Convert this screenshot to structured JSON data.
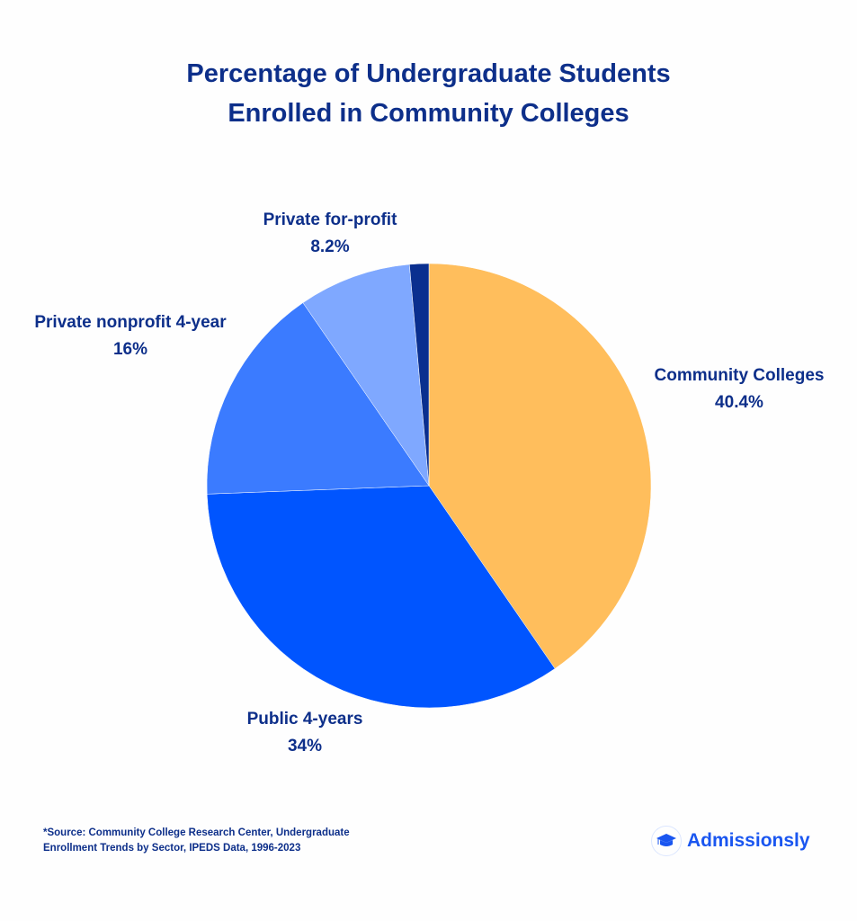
{
  "chart_data": {
    "type": "pie",
    "title": "Percentage of Undergraduate Students Enrolled in Community Colleges",
    "title_lines": [
      "Percentage of Undergraduate Students",
      "Enrolled in Community Colleges"
    ],
    "start": "top",
    "direction": "clockwise",
    "slices": [
      {
        "label": "Community Colleges",
        "value": 40.4,
        "value_label": "40.4%",
        "color": "#FFBE5C"
      },
      {
        "label": "Public 4-years",
        "value": 34,
        "value_label": "34%",
        "color": "#0055FF"
      },
      {
        "label": "Private nonprofit 4-year",
        "value": 16,
        "value_label": "16%",
        "color": "#3B7BFF"
      },
      {
        "label": "Private for-profit",
        "value": 8.2,
        "value_label": "8.2%",
        "color": "#7FA8FF"
      },
      {
        "label": "",
        "value": 1.4,
        "value_label": "",
        "color": "#0A2F8F"
      }
    ],
    "legend": "none"
  },
  "source": [
    "*Source: Community College Research Center, Undergraduate",
    "Enrollment Trends by Sector, IPEDS Data, 1996-2023"
  ],
  "logo": {
    "text": "Admissionsly",
    "icon": "graduation-cap-icon",
    "color": "#1a56f0"
  }
}
